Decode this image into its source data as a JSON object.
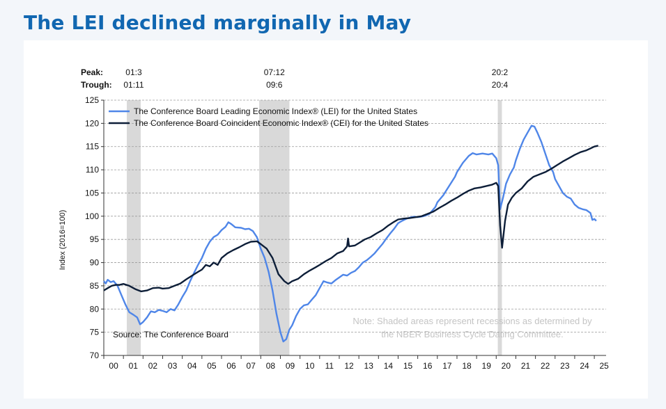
{
  "headline": "The LEI declined marginally in May",
  "chart_data": {
    "type": "line",
    "title": "The LEI declined marginally in May",
    "ylabel": "Index (2016=100)",
    "xlabel": "",
    "ylim": [
      70,
      125
    ],
    "yticks": [
      70,
      75,
      80,
      85,
      90,
      95,
      100,
      105,
      110,
      115,
      120,
      125
    ],
    "xlim": [
      2000,
      2025.6
    ],
    "xticks": [
      "00",
      "01",
      "02",
      "03",
      "04",
      "05",
      "06",
      "07",
      "08",
      "09",
      "10",
      "11",
      "12",
      "13",
      "14",
      "15",
      "16",
      "17",
      "18",
      "19",
      "20",
      "21",
      "22",
      "23",
      "24",
      "25"
    ],
    "grid": "horizontal dashed",
    "legend_position": "top-left",
    "peak_label": "Peak:",
    "trough_label": "Trough:",
    "recessions": [
      {
        "peak": "01:3",
        "trough": "01:11",
        "start": 2001.17,
        "end": 2001.88
      },
      {
        "peak": "07:12",
        "trough": "09:6",
        "start": 2007.92,
        "end": 2009.46
      },
      {
        "peak": "20:2",
        "trough": "20:4",
        "start": 2020.08,
        "end": 2020.29
      }
    ],
    "note_line1": "Note: Shaded areas represent recessions as determined by",
    "note_line2": "the NBER Business Cycle Dating Committee.",
    "source": "Source: The Conference Board",
    "series": [
      {
        "name": "The Conference Board Leading Economic Index® (LEI) for the United States",
        "color": "#4f86e8",
        "points": [
          [
            2000.0,
            86
          ],
          [
            2000.1,
            85.5
          ],
          [
            2000.2,
            86.3
          ],
          [
            2000.35,
            85.8
          ],
          [
            2000.5,
            86
          ],
          [
            2000.7,
            85
          ],
          [
            2000.9,
            83
          ],
          [
            2001.1,
            81
          ],
          [
            2001.3,
            79.3
          ],
          [
            2001.5,
            78.8
          ],
          [
            2001.7,
            78.2
          ],
          [
            2001.85,
            76.7
          ],
          [
            2002.0,
            77.2
          ],
          [
            2002.2,
            78.2
          ],
          [
            2002.4,
            79.5
          ],
          [
            2002.6,
            79.3
          ],
          [
            2002.8,
            79.8
          ],
          [
            2003.0,
            79.6
          ],
          [
            2003.2,
            79.3
          ],
          [
            2003.4,
            80
          ],
          [
            2003.6,
            79.7
          ],
          [
            2003.8,
            81
          ],
          [
            2004.0,
            82.6
          ],
          [
            2004.2,
            84
          ],
          [
            2004.4,
            86
          ],
          [
            2004.6,
            87.8
          ],
          [
            2004.8,
            89.5
          ],
          [
            2005.0,
            91
          ],
          [
            2005.2,
            93
          ],
          [
            2005.4,
            94.5
          ],
          [
            2005.6,
            95.5
          ],
          [
            2005.8,
            96
          ],
          [
            2006.0,
            97
          ],
          [
            2006.2,
            97.7
          ],
          [
            2006.35,
            98.7
          ],
          [
            2006.5,
            98.3
          ],
          [
            2006.7,
            97.6
          ],
          [
            2007.0,
            97.5
          ],
          [
            2007.2,
            97.2
          ],
          [
            2007.4,
            97.3
          ],
          [
            2007.6,
            96.8
          ],
          [
            2007.8,
            95.5
          ],
          [
            2008.0,
            93
          ],
          [
            2008.2,
            91
          ],
          [
            2008.4,
            88
          ],
          [
            2008.6,
            84
          ],
          [
            2008.8,
            79
          ],
          [
            2009.0,
            75
          ],
          [
            2009.15,
            73
          ],
          [
            2009.3,
            73.5
          ],
          [
            2009.45,
            75.5
          ],
          [
            2009.6,
            76.5
          ],
          [
            2009.8,
            78.5
          ],
          [
            2010.0,
            80
          ],
          [
            2010.2,
            80.8
          ],
          [
            2010.4,
            81
          ],
          [
            2010.6,
            82
          ],
          [
            2010.8,
            83
          ],
          [
            2011.0,
            84.5
          ],
          [
            2011.2,
            86
          ],
          [
            2011.4,
            85.7
          ],
          [
            2011.6,
            85.5
          ],
          [
            2011.8,
            86.2
          ],
          [
            2012.0,
            86.8
          ],
          [
            2012.2,
            87.4
          ],
          [
            2012.4,
            87.2
          ],
          [
            2012.6,
            87.8
          ],
          [
            2012.8,
            88.2
          ],
          [
            2013.0,
            89
          ],
          [
            2013.2,
            90
          ],
          [
            2013.4,
            90.5
          ],
          [
            2013.6,
            91.2
          ],
          [
            2013.8,
            92
          ],
          [
            2014.0,
            93
          ],
          [
            2014.2,
            94
          ],
          [
            2014.4,
            95.2
          ],
          [
            2014.6,
            96.3
          ],
          [
            2014.8,
            97.3
          ],
          [
            2015.0,
            98.5
          ],
          [
            2015.2,
            99
          ],
          [
            2015.4,
            99.4
          ],
          [
            2015.6,
            99.7
          ],
          [
            2015.8,
            99.9
          ],
          [
            2016.0,
            99.8
          ],
          [
            2016.3,
            100
          ],
          [
            2016.6,
            100.5
          ],
          [
            2016.9,
            102
          ],
          [
            2017.0,
            103
          ],
          [
            2017.3,
            104.5
          ],
          [
            2017.6,
            106.5
          ],
          [
            2017.9,
            108.5
          ],
          [
            2018.0,
            109.5
          ],
          [
            2018.3,
            111.5
          ],
          [
            2018.6,
            113
          ],
          [
            2018.8,
            113.6
          ],
          [
            2019.0,
            113.3
          ],
          [
            2019.3,
            113.5
          ],
          [
            2019.6,
            113.3
          ],
          [
            2019.8,
            113.5
          ],
          [
            2020.0,
            112.5
          ],
          [
            2020.1,
            111
          ],
          [
            2020.2,
            101.5
          ],
          [
            2020.35,
            104
          ],
          [
            2020.5,
            107
          ],
          [
            2020.7,
            109
          ],
          [
            2020.9,
            110.5
          ],
          [
            2021.0,
            112
          ],
          [
            2021.2,
            114.5
          ],
          [
            2021.4,
            116.5
          ],
          [
            2021.6,
            118
          ],
          [
            2021.8,
            119.5
          ],
          [
            2021.95,
            119.3
          ],
          [
            2022.1,
            118
          ],
          [
            2022.3,
            116
          ],
          [
            2022.5,
            113.5
          ],
          [
            2022.7,
            111
          ],
          [
            2022.9,
            109.5
          ],
          [
            2023.0,
            108
          ],
          [
            2023.2,
            106.5
          ],
          [
            2023.4,
            105
          ],
          [
            2023.6,
            104.2
          ],
          [
            2023.8,
            103.8
          ],
          [
            2024.0,
            102.5
          ],
          [
            2024.2,
            101.8
          ],
          [
            2024.4,
            101.5
          ],
          [
            2024.6,
            101.3
          ],
          [
            2024.8,
            100.7
          ],
          [
            2024.9,
            99.2
          ],
          [
            2025.0,
            99.4
          ],
          [
            2025.1,
            99
          ]
        ]
      },
      {
        "name": "The Conference Board Coincident Economic Index® (CEI) for the United States",
        "color": "#0d1e38",
        "points": [
          [
            2000.0,
            84
          ],
          [
            2000.2,
            84.5
          ],
          [
            2000.4,
            85
          ],
          [
            2000.6,
            85.2
          ],
          [
            2000.8,
            85.2
          ],
          [
            2001.0,
            85.4
          ],
          [
            2001.3,
            85
          ],
          [
            2001.6,
            84.3
          ],
          [
            2001.9,
            83.8
          ],
          [
            2002.2,
            84
          ],
          [
            2002.5,
            84.5
          ],
          [
            2002.8,
            84.6
          ],
          [
            2003.0,
            84.4
          ],
          [
            2003.3,
            84.5
          ],
          [
            2003.6,
            85
          ],
          [
            2003.9,
            85.5
          ],
          [
            2004.2,
            86.4
          ],
          [
            2004.5,
            87.2
          ],
          [
            2004.8,
            88
          ],
          [
            2005.0,
            88.5
          ],
          [
            2005.2,
            89.5
          ],
          [
            2005.4,
            89.2
          ],
          [
            2005.6,
            90
          ],
          [
            2005.8,
            89.5
          ],
          [
            2006.0,
            91
          ],
          [
            2006.3,
            92
          ],
          [
            2006.6,
            92.7
          ],
          [
            2006.9,
            93.3
          ],
          [
            2007.2,
            94
          ],
          [
            2007.5,
            94.5
          ],
          [
            2007.8,
            94.6
          ],
          [
            2008.0,
            94
          ],
          [
            2008.3,
            93
          ],
          [
            2008.6,
            91
          ],
          [
            2008.9,
            87.5
          ],
          [
            2009.2,
            86
          ],
          [
            2009.4,
            85.4
          ],
          [
            2009.6,
            86
          ],
          [
            2009.9,
            86.5
          ],
          [
            2010.2,
            87.5
          ],
          [
            2010.5,
            88.3
          ],
          [
            2010.8,
            89
          ],
          [
            2011.0,
            89.5
          ],
          [
            2011.3,
            90.3
          ],
          [
            2011.6,
            91
          ],
          [
            2011.9,
            92
          ],
          [
            2012.2,
            92.5
          ],
          [
            2012.4,
            93.5
          ],
          [
            2012.45,
            95.2
          ],
          [
            2012.5,
            93.5
          ],
          [
            2012.8,
            93.7
          ],
          [
            2013.0,
            94.2
          ],
          [
            2013.3,
            95
          ],
          [
            2013.6,
            95.5
          ],
          [
            2013.9,
            96.3
          ],
          [
            2014.2,
            97
          ],
          [
            2014.5,
            98
          ],
          [
            2014.8,
            98.8
          ],
          [
            2015.0,
            99.3
          ],
          [
            2015.3,
            99.5
          ],
          [
            2015.6,
            99.6
          ],
          [
            2015.9,
            99.8
          ],
          [
            2016.2,
            100
          ],
          [
            2016.5,
            100.5
          ],
          [
            2016.8,
            101
          ],
          [
            2017.1,
            101.8
          ],
          [
            2017.4,
            102.5
          ],
          [
            2017.7,
            103.3
          ],
          [
            2018.0,
            104
          ],
          [
            2018.3,
            104.8
          ],
          [
            2018.6,
            105.5
          ],
          [
            2018.9,
            106
          ],
          [
            2019.2,
            106.2
          ],
          [
            2019.5,
            106.5
          ],
          [
            2019.8,
            106.8
          ],
          [
            2020.0,
            107.2
          ],
          [
            2020.1,
            106.5
          ],
          [
            2020.2,
            98
          ],
          [
            2020.3,
            93.2
          ],
          [
            2020.45,
            99
          ],
          [
            2020.6,
            102.5
          ],
          [
            2020.8,
            104
          ],
          [
            2021.0,
            105
          ],
          [
            2021.3,
            106
          ],
          [
            2021.6,
            107.5
          ],
          [
            2021.9,
            108.5
          ],
          [
            2022.2,
            109
          ],
          [
            2022.5,
            109.5
          ],
          [
            2022.8,
            110.2
          ],
          [
            2023.1,
            111
          ],
          [
            2023.4,
            111.8
          ],
          [
            2023.7,
            112.5
          ],
          [
            2024.0,
            113.2
          ],
          [
            2024.3,
            113.8
          ],
          [
            2024.6,
            114.2
          ],
          [
            2024.8,
            114.6
          ],
          [
            2025.0,
            115
          ],
          [
            2025.2,
            115.2
          ]
        ]
      }
    ]
  }
}
